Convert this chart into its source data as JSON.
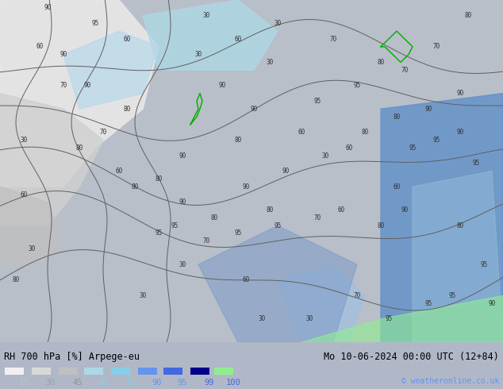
{
  "title_left": "RH 700 hPa [%] Arpege-eu",
  "title_right": "Mo 10-06-2024 00:00 UTC (12+84)",
  "copyright": "© weatheronline.co.uk",
  "legend_values": [
    15,
    30,
    45,
    60,
    75,
    90,
    95,
    99,
    100
  ],
  "legend_colors": [
    "#ffffff",
    "#e0e0e0",
    "#c0c0c0",
    "#add8e6",
    "#87ceeb",
    "#6495ed",
    "#4169e1",
    "#00008b",
    "#90ee90"
  ],
  "legend_label_colors": [
    "#c0c0c0",
    "#a0a0a0",
    "#909090",
    "#87ceeb",
    "#87ceeb",
    "#6495ed",
    "#6495ed",
    "#4169e1",
    "#4169e1"
  ],
  "bg_color": "#b0b8c0",
  "map_bg": "#b0b8c0",
  "figsize": [
    6.34,
    4.9
  ],
  "dpi": 100
}
